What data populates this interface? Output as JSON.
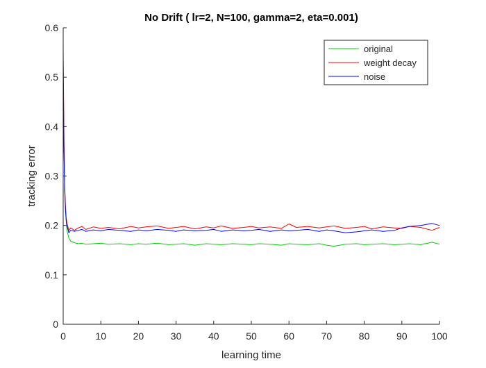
{
  "chart_data": {
    "type": "line",
    "title": "No Drift ( lr=2, N=100, gamma=2, eta=0.001)",
    "xlabel": "learning time",
    "ylabel": "tracking error",
    "xlim": [
      0,
      100
    ],
    "ylim": [
      0,
      0.6
    ],
    "xticks": [
      "0",
      "10",
      "20",
      "30",
      "40",
      "50",
      "60",
      "70",
      "80",
      "90",
      "100"
    ],
    "yticks": [
      "0",
      "0.1",
      "0.2",
      "0.3",
      "0.4",
      "0.5",
      "0.6"
    ],
    "grid": false,
    "legend_position": "top-right",
    "series": [
      {
        "name": "original",
        "color": "#00d000",
        "x": [
          0,
          0.2,
          0.4,
          0.6,
          0.8,
          1,
          1.5,
          2,
          3,
          4,
          5,
          6,
          8,
          10,
          12,
          15,
          18,
          20,
          22,
          25,
          28,
          30,
          32,
          35,
          38,
          40,
          42,
          45,
          48,
          50,
          52,
          55,
          58,
          60,
          62,
          65,
          68,
          70,
          72,
          75,
          78,
          80,
          82,
          85,
          88,
          90,
          92,
          95,
          98,
          100
        ],
        "y": [
          0.52,
          0.35,
          0.27,
          0.23,
          0.21,
          0.19,
          0.175,
          0.168,
          0.165,
          0.163,
          0.164,
          0.162,
          0.163,
          0.164,
          0.162,
          0.163,
          0.161,
          0.163,
          0.162,
          0.164,
          0.161,
          0.162,
          0.163,
          0.16,
          0.163,
          0.162,
          0.161,
          0.163,
          0.162,
          0.161,
          0.163,
          0.162,
          0.16,
          0.163,
          0.162,
          0.161,
          0.163,
          0.16,
          0.158,
          0.162,
          0.163,
          0.161,
          0.162,
          0.163,
          0.161,
          0.162,
          0.163,
          0.161,
          0.166,
          0.162
        ]
      },
      {
        "name": "weight decay",
        "color": "#ff0000",
        "x": [
          0,
          0.2,
          0.4,
          0.6,
          0.8,
          1,
          1.5,
          2,
          3,
          4,
          5,
          6,
          8,
          10,
          12,
          15,
          18,
          20,
          22,
          25,
          28,
          30,
          32,
          35,
          38,
          40,
          42,
          45,
          48,
          50,
          52,
          55,
          58,
          60,
          62,
          65,
          68,
          70,
          72,
          75,
          78,
          80,
          82,
          85,
          88,
          90,
          92,
          95,
          98,
          100
        ],
        "y": [
          0.56,
          0.38,
          0.28,
          0.24,
          0.215,
          0.205,
          0.19,
          0.195,
          0.19,
          0.195,
          0.198,
          0.192,
          0.197,
          0.194,
          0.196,
          0.193,
          0.198,
          0.195,
          0.197,
          0.199,
          0.194,
          0.196,
          0.198,
          0.193,
          0.197,
          0.195,
          0.199,
          0.194,
          0.196,
          0.198,
          0.195,
          0.197,
          0.194,
          0.203,
          0.196,
          0.198,
          0.195,
          0.197,
          0.199,
          0.194,
          0.196,
          0.198,
          0.193,
          0.197,
          0.195,
          0.194,
          0.198,
          0.196,
          0.19,
          0.196
        ]
      },
      {
        "name": "noise",
        "color": "#0000ff",
        "x": [
          0,
          0.2,
          0.4,
          0.6,
          0.8,
          1,
          1.5,
          2,
          3,
          4,
          5,
          6,
          8,
          10,
          12,
          15,
          18,
          20,
          22,
          25,
          28,
          30,
          32,
          35,
          38,
          40,
          42,
          45,
          48,
          50,
          52,
          55,
          58,
          60,
          62,
          65,
          68,
          70,
          72,
          75,
          78,
          80,
          82,
          85,
          88,
          90,
          92,
          95,
          98,
          100
        ],
        "y": [
          0.53,
          0.36,
          0.27,
          0.235,
          0.21,
          0.2,
          0.185,
          0.19,
          0.188,
          0.19,
          0.192,
          0.188,
          0.191,
          0.189,
          0.192,
          0.19,
          0.188,
          0.191,
          0.189,
          0.192,
          0.19,
          0.188,
          0.191,
          0.189,
          0.19,
          0.192,
          0.188,
          0.191,
          0.189,
          0.19,
          0.192,
          0.188,
          0.191,
          0.189,
          0.19,
          0.192,
          0.188,
          0.191,
          0.189,
          0.185,
          0.187,
          0.189,
          0.191,
          0.188,
          0.19,
          0.195,
          0.198,
          0.2,
          0.204,
          0.2
        ]
      }
    ]
  }
}
